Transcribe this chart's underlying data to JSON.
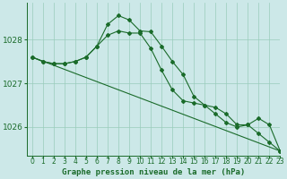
{
  "title": "Graphe pression niveau de la mer (hPa)",
  "background_color": "#cce8e8",
  "grid_color": "#99ccbb",
  "line_color": "#1a6b2a",
  "marker_color": "#1a6b2a",
  "xlim": [
    -0.5,
    23
  ],
  "ylim": [
    1025.35,
    1028.85
  ],
  "yticks": [
    1026,
    1027,
    1028
  ],
  "xticks": [
    0,
    1,
    2,
    3,
    4,
    5,
    6,
    7,
    8,
    9,
    10,
    11,
    12,
    13,
    14,
    15,
    16,
    17,
    18,
    19,
    20,
    21,
    22,
    23
  ],
  "series_main_x": [
    0,
    1,
    2,
    3,
    4,
    5,
    6,
    7,
    8,
    9,
    10,
    11,
    12,
    13,
    14,
    15,
    16,
    17,
    18,
    19,
    20,
    21,
    22,
    23
  ],
  "series_main_y": [
    1027.6,
    1027.5,
    1027.45,
    1027.45,
    1027.5,
    1027.6,
    1027.85,
    1028.35,
    1028.55,
    1028.45,
    1028.2,
    1028.18,
    1027.85,
    1027.5,
    1027.2,
    1026.7,
    1026.5,
    1026.45,
    1026.3,
    1026.05,
    1026.05,
    1026.2,
    1026.05,
    1025.45
  ],
  "series_trend_x": [
    0,
    23
  ],
  "series_trend_y": [
    1027.6,
    1025.45
  ],
  "series_smooth_x": [
    0,
    1,
    2,
    3,
    4,
    5,
    6,
    7,
    8,
    9,
    10,
    11,
    12,
    13,
    14,
    15,
    16,
    17,
    18,
    19,
    20,
    21,
    22,
    23
  ],
  "series_smooth_y": [
    1027.6,
    1027.5,
    1027.45,
    1027.45,
    1027.5,
    1027.6,
    1027.85,
    1028.1,
    1028.2,
    1028.15,
    1028.15,
    1027.8,
    1027.3,
    1026.85,
    1026.6,
    1026.55,
    1026.5,
    1026.3,
    1026.1,
    1026.0,
    1026.05,
    1025.85,
    1025.65,
    1025.45
  ],
  "xlabel_fontsize": 6.5,
  "xtick_fontsize": 5.5,
  "ytick_fontsize": 6.5
}
